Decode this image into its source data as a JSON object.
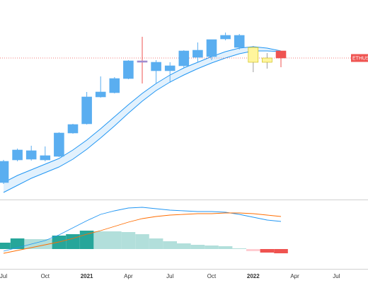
{
  "chart_data": {
    "type": "candlestick",
    "x": [
      0,
      1,
      2,
      3,
      4,
      5,
      6,
      7,
      8,
      9,
      10,
      11,
      12,
      13,
      14,
      15,
      16,
      17,
      18,
      19,
      20
    ],
    "open": [
      24,
      56,
      57,
      56,
      61,
      94,
      107,
      145,
      151,
      171,
      194,
      182,
      182,
      189,
      201,
      202,
      227,
      215,
      215,
      194,
      210
    ],
    "high": [
      56,
      72,
      76,
      75,
      95,
      107,
      152,
      174,
      173,
      197,
      230,
      197,
      194,
      211,
      222,
      226,
      236,
      234,
      217,
      207,
      210
    ],
    "low": [
      22,
      54,
      55,
      54,
      60,
      93,
      106,
      144,
      150,
      170,
      164,
      164,
      165,
      186,
      194,
      197,
      225,
      212,
      180,
      185,
      187
    ],
    "close": [
      54,
      70,
      69,
      62,
      94,
      106,
      145,
      152,
      171,
      196,
      196,
      194,
      189,
      210,
      211,
      226,
      232,
      232,
      194,
      200,
      200
    ],
    "colors": [
      "#5aaef0",
      "#5aaef0",
      "#5aaef0",
      "#5aaef0",
      "#5aaef0",
      "#5aaef0",
      "#5aaef0",
      "#5aaef0",
      "#5aaef0",
      "#5aaef0",
      "#a08cd0",
      "#5aaef0",
      "#5aaef0",
      "#5aaef0",
      "#5aaef0",
      "#5aaef0",
      "#5aaef0",
      "#5aaef0",
      "#fff59d",
      "#fff59d",
      "#ef5350"
    ],
    "band": {
      "upper": [
        24,
        34,
        42,
        50,
        58,
        70,
        84,
        100,
        117,
        134,
        150,
        164,
        176,
        186,
        194,
        202,
        209,
        214,
        216,
        214,
        210
      ],
      "lower": [
        10,
        20,
        30,
        38,
        46,
        57,
        71,
        87,
        104,
        122,
        139,
        154,
        166,
        176,
        185,
        193,
        200,
        206,
        210,
        210,
        209
      ],
      "color": "#2196f3"
    },
    "ylim": [
      0,
      282
    ],
    "xlim": [
      -0.255,
      26.275
    ],
    "xticks": [
      {
        "value": 0,
        "label": "Jul"
      },
      {
        "value": 3,
        "label": "Oct"
      },
      {
        "value": 6,
        "label": "2021"
      },
      {
        "value": 9,
        "label": "Apr"
      },
      {
        "value": 12,
        "label": "Jul"
      },
      {
        "value": 15,
        "label": "Oct"
      },
      {
        "value": 18,
        "label": "2022"
      },
      {
        "value": 21,
        "label": "Apr"
      },
      {
        "value": 24,
        "label": "Jul"
      }
    ],
    "price_label": "ETHUSD",
    "price_color": "#ef5350",
    "macd": {
      "histogram": [
        9,
        15,
        14,
        14,
        19,
        21,
        26,
        25,
        25,
        24,
        21,
        15,
        11,
        8,
        6,
        5,
        4,
        1,
        -3,
        -5,
        -6
      ],
      "histogram_colors": [
        "#26a69a",
        "#26a69a",
        "#b2dfdb",
        "#b2dfdb",
        "#26a69a",
        "#26a69a",
        "#26a69a",
        "#b2dfdb",
        "#b2dfdb",
        "#b2dfdb",
        "#b2dfdb",
        "#b2dfdb",
        "#b2dfdb",
        "#b2dfdb",
        "#b2dfdb",
        "#b2dfdb",
        "#b2dfdb",
        "#b2dfdb",
        "#ffcdd2",
        "#ef5350",
        "#ef5350"
      ],
      "macd": [
        -3,
        2,
        7,
        12,
        20,
        30,
        40,
        49,
        54,
        58,
        59,
        57,
        55,
        54,
        53,
        53,
        52,
        49,
        45,
        41,
        39
      ],
      "signal": [
        -6,
        -2,
        2,
        6,
        10,
        15,
        21,
        26,
        32,
        38,
        43,
        46,
        48,
        49,
        50,
        50,
        51,
        51,
        50,
        48,
        46
      ],
      "macd_color": "#2196f3",
      "signal_color": "#ff6d00",
      "ylim": [
        -28,
        69
      ]
    }
  }
}
